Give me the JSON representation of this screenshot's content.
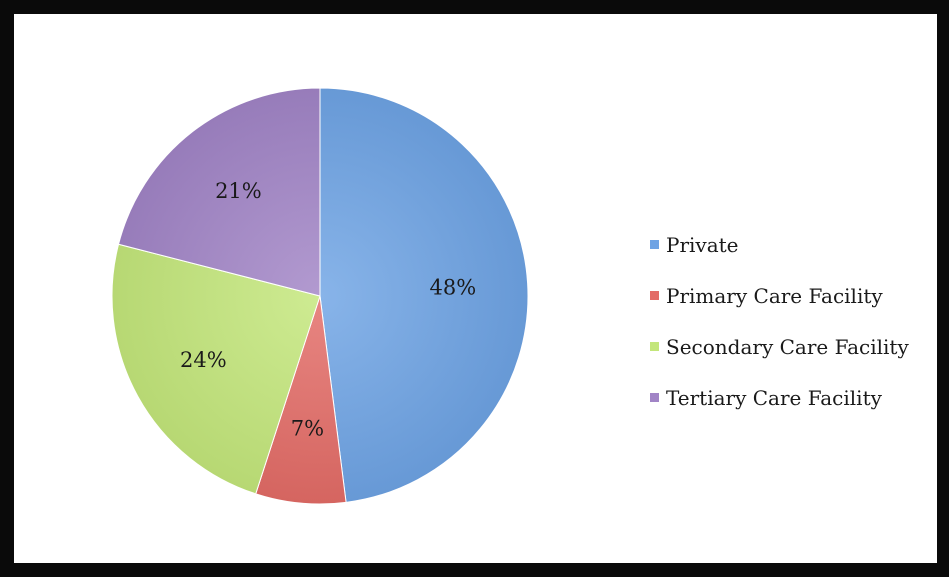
{
  "chart_data": {
    "type": "pie",
    "title": "",
    "slices": [
      {
        "label": "Private",
        "value": 48,
        "display": "48%",
        "color": "#6ea3e4"
      },
      {
        "label": "Primary Care Facility",
        "value": 7,
        "display": "7%",
        "color": "#e36b66"
      },
      {
        "label": "Secondary Care Facility",
        "value": 24,
        "display": "24%",
        "color": "#c3e67a"
      },
      {
        "label": "Tertiary Care Facility",
        "value": 21,
        "display": "21%",
        "color": "#a184c6"
      }
    ],
    "start_angle_deg": 0,
    "direction": "clockwise",
    "legend_placement": "right",
    "grid": false
  }
}
